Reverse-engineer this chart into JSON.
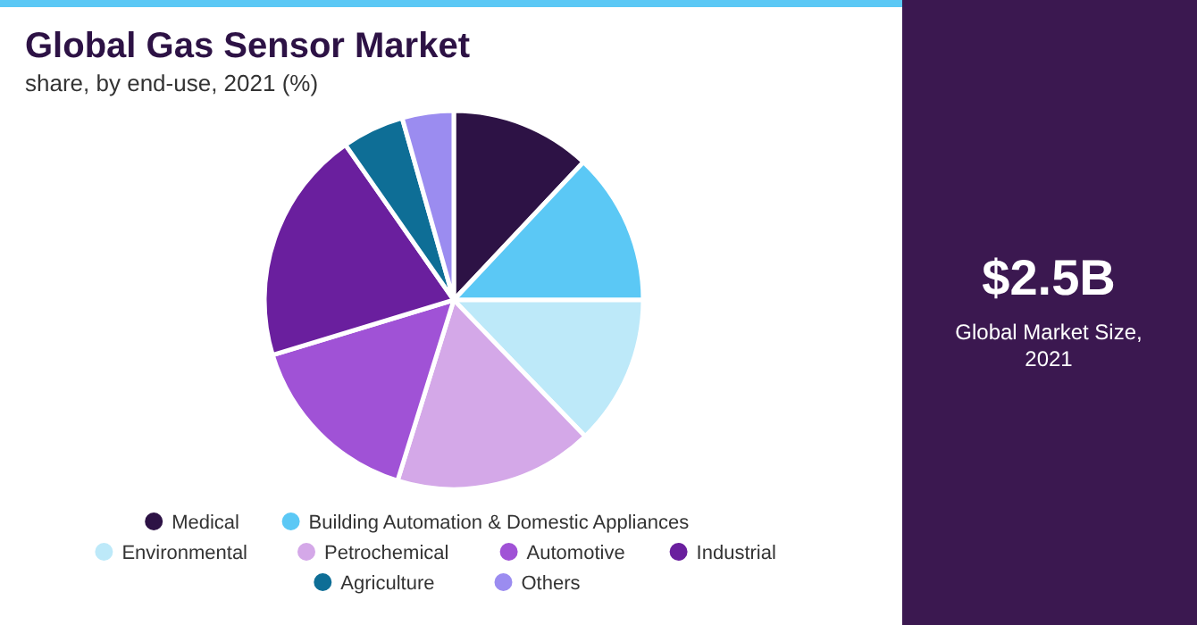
{
  "chart_data": {
    "type": "pie",
    "title": "Global Gas Sensor Market",
    "subtitle": "share, by end-use, 2021 (%)",
    "categories": [
      "Medical",
      "Building Automation & Domestic Appliances",
      "Environmental",
      "Petrochemical",
      "Automotive",
      "Industrial",
      "Agriculture",
      "Others"
    ],
    "values": [
      12,
      13,
      12.8,
      17,
      15.5,
      20,
      5.3,
      4.4
    ],
    "colors": [
      "#2d1245",
      "#5bc8f5",
      "#bde9f9",
      "#d4a8e8",
      "#a052d6",
      "#6a1f9e",
      "#0e6e96",
      "#9b8cf0"
    ],
    "legend": "bottom",
    "annotations": [
      "$2.5B",
      "Global Market Size, 2021"
    ]
  }
}
